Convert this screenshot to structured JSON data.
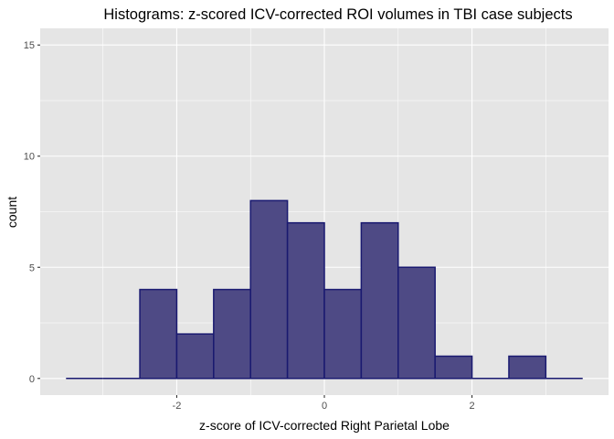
{
  "chart_data": {
    "type": "bar",
    "title": "Histograms: z-scored ICV-corrected ROI volumes in TBI case subjects",
    "xlabel": "z-score of ICV-corrected Right Parietal Lobe",
    "ylabel": "count",
    "bin_width": 0.5,
    "bins": [
      {
        "start": -3.5,
        "end": -3.0,
        "count": 0
      },
      {
        "start": -3.0,
        "end": -2.5,
        "count": 0
      },
      {
        "start": -2.5,
        "end": -2.0,
        "count": 4
      },
      {
        "start": -2.0,
        "end": -1.5,
        "count": 2
      },
      {
        "start": -1.5,
        "end": -1.0,
        "count": 4
      },
      {
        "start": -1.0,
        "end": -0.5,
        "count": 8
      },
      {
        "start": -0.5,
        "end": 0.0,
        "count": 7
      },
      {
        "start": 0.0,
        "end": 0.5,
        "count": 4
      },
      {
        "start": 0.5,
        "end": 1.0,
        "count": 7
      },
      {
        "start": 1.0,
        "end": 1.5,
        "count": 5
      },
      {
        "start": 1.5,
        "end": 2.0,
        "count": 1
      },
      {
        "start": 2.0,
        "end": 2.5,
        "count": 0
      },
      {
        "start": 2.5,
        "end": 3.0,
        "count": 1
      },
      {
        "start": 3.0,
        "end": 3.5,
        "count": 0
      }
    ],
    "xlim": [
      -3.5,
      3.5
    ],
    "ylim": [
      0,
      15
    ],
    "x_ticks": [
      -2,
      0,
      2
    ],
    "x_tick_labels": [
      "-2",
      "0",
      "2"
    ],
    "y_ticks": [
      0,
      5,
      10,
      15
    ],
    "y_tick_labels": [
      "0",
      "5",
      "10",
      "15"
    ],
    "grid": true,
    "colors": {
      "panel_background": "#e5e5e5",
      "grid_line": "#ffffff",
      "bar_fill": "#4e4a85",
      "bar_outline": "#191970"
    }
  }
}
